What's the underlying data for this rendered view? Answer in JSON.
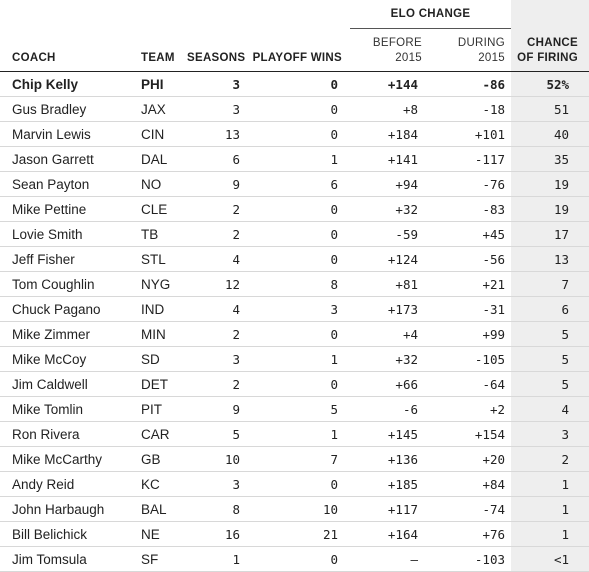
{
  "group_header": "ELO CHANGE",
  "columns": {
    "coach": "COACH",
    "team": "TEAM",
    "seasons": "SEASONS",
    "playoff_wins": "PLAYOFF WINS",
    "before_line1": "BEFORE",
    "before_line2": "2015",
    "during_line1": "DURING",
    "during_line2": "2015",
    "chance_line1": "CHANCE",
    "chance_line2": "OF FIRING"
  },
  "rows": [
    {
      "coach": "Chip Kelly",
      "team": "PHI",
      "seasons": "3",
      "playoff_wins": "0",
      "before": "+144",
      "during": "-86",
      "chance": "52%"
    },
    {
      "coach": "Gus Bradley",
      "team": "JAX",
      "seasons": "3",
      "playoff_wins": "0",
      "before": "+8",
      "during": "-18",
      "chance": "51"
    },
    {
      "coach": "Marvin Lewis",
      "team": "CIN",
      "seasons": "13",
      "playoff_wins": "0",
      "before": "+184",
      "during": "+101",
      "chance": "40"
    },
    {
      "coach": "Jason Garrett",
      "team": "DAL",
      "seasons": "6",
      "playoff_wins": "1",
      "before": "+141",
      "during": "-117",
      "chance": "35"
    },
    {
      "coach": "Sean Payton",
      "team": "NO",
      "seasons": "9",
      "playoff_wins": "6",
      "before": "+94",
      "during": "-76",
      "chance": "19"
    },
    {
      "coach": "Mike Pettine",
      "team": "CLE",
      "seasons": "2",
      "playoff_wins": "0",
      "before": "+32",
      "during": "-83",
      "chance": "19"
    },
    {
      "coach": "Lovie Smith",
      "team": "TB",
      "seasons": "2",
      "playoff_wins": "0",
      "before": "-59",
      "during": "+45",
      "chance": "17"
    },
    {
      "coach": "Jeff Fisher",
      "team": "STL",
      "seasons": "4",
      "playoff_wins": "0",
      "before": "+124",
      "during": "-56",
      "chance": "13"
    },
    {
      "coach": "Tom Coughlin",
      "team": "NYG",
      "seasons": "12",
      "playoff_wins": "8",
      "before": "+81",
      "during": "+21",
      "chance": "7"
    },
    {
      "coach": "Chuck Pagano",
      "team": "IND",
      "seasons": "4",
      "playoff_wins": "3",
      "before": "+173",
      "during": "-31",
      "chance": "6"
    },
    {
      "coach": "Mike Zimmer",
      "team": "MIN",
      "seasons": "2",
      "playoff_wins": "0",
      "before": "+4",
      "during": "+99",
      "chance": "5"
    },
    {
      "coach": "Mike McCoy",
      "team": "SD",
      "seasons": "3",
      "playoff_wins": "1",
      "before": "+32",
      "during": "-105",
      "chance": "5"
    },
    {
      "coach": "Jim Caldwell",
      "team": "DET",
      "seasons": "2",
      "playoff_wins": "0",
      "before": "+66",
      "during": "-64",
      "chance": "5"
    },
    {
      "coach": "Mike Tomlin",
      "team": "PIT",
      "seasons": "9",
      "playoff_wins": "5",
      "before": "-6",
      "during": "+2",
      "chance": "4"
    },
    {
      "coach": "Ron Rivera",
      "team": "CAR",
      "seasons": "5",
      "playoff_wins": "1",
      "before": "+145",
      "during": "+154",
      "chance": "3"
    },
    {
      "coach": "Mike McCarthy",
      "team": "GB",
      "seasons": "10",
      "playoff_wins": "7",
      "before": "+136",
      "during": "+20",
      "chance": "2"
    },
    {
      "coach": "Andy Reid",
      "team": "KC",
      "seasons": "3",
      "playoff_wins": "0",
      "before": "+185",
      "during": "+84",
      "chance": "1"
    },
    {
      "coach": "John Harbaugh",
      "team": "BAL",
      "seasons": "8",
      "playoff_wins": "10",
      "before": "+117",
      "during": "-74",
      "chance": "1"
    },
    {
      "coach": "Bill Belichick",
      "team": "NE",
      "seasons": "16",
      "playoff_wins": "21",
      "before": "+164",
      "during": "+76",
      "chance": "1"
    },
    {
      "coach": "Jim Tomsula",
      "team": "SF",
      "seasons": "1",
      "playoff_wins": "0",
      "before": "–",
      "during": "-103",
      "chance": "<1"
    }
  ]
}
